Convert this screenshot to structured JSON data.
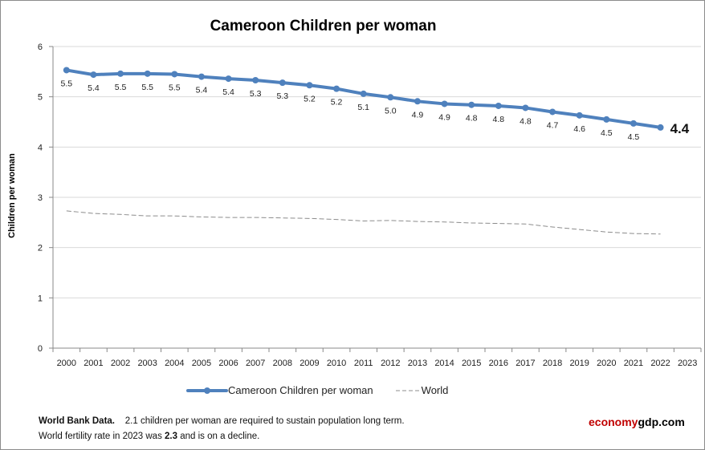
{
  "chart_data": {
    "type": "line",
    "title": "Cameroon Children per woman",
    "xlabel": "",
    "ylabel": "Children per woman",
    "ylim": [
      0,
      6
    ],
    "yticks": [
      0,
      1,
      2,
      3,
      4,
      5,
      6
    ],
    "grid": true,
    "legend_position": "bottom",
    "categories": [
      "2000",
      "2001",
      "2002",
      "2003",
      "2004",
      "2005",
      "2006",
      "2007",
      "2008",
      "2009",
      "2010",
      "2011",
      "2012",
      "2013",
      "2014",
      "2015",
      "2016",
      "2017",
      "2018",
      "2019",
      "2020",
      "2021",
      "2022",
      "2023"
    ],
    "series": [
      {
        "name": "Cameroon Children per woman",
        "color": "#4f81bd",
        "style": "solid-markers",
        "values": [
          5.53,
          5.44,
          5.46,
          5.46,
          5.45,
          5.4,
          5.36,
          5.33,
          5.28,
          5.23,
          5.16,
          5.06,
          4.99,
          4.91,
          4.86,
          4.84,
          4.82,
          4.78,
          4.7,
          4.63,
          4.55,
          4.47,
          4.39,
          null
        ],
        "data_labels": [
          "5.5",
          "5.4",
          "5.5",
          "5.5",
          "5.5",
          "5.4",
          "5.4",
          "5.3",
          "5.3",
          "5.2",
          "5.2",
          "5.1",
          "5.0",
          "4.9",
          "4.9",
          "4.8",
          "4.8",
          "4.8",
          "4.7",
          "4.6",
          "4.5",
          "4.5",
          "4.4"
        ]
      },
      {
        "name": "World",
        "color": "#8c8c8c",
        "style": "dashed",
        "values": [
          2.73,
          2.68,
          2.66,
          2.63,
          2.63,
          2.61,
          2.6,
          2.6,
          2.59,
          2.58,
          2.56,
          2.53,
          2.54,
          2.52,
          2.51,
          2.49,
          2.48,
          2.47,
          2.41,
          2.36,
          2.31,
          2.28,
          2.27,
          null
        ]
      }
    ]
  },
  "footer": {
    "source_label": "World Bank Data.",
    "note1": "2.1 children per woman  are required to sustain population long term.",
    "note2_prefix": "World fertility rate in 2023 was ",
    "note2_value": "2.3",
    "note2_suffix": " and is on a decline."
  },
  "brand": {
    "part1": "economy",
    "part2": "gdp.com",
    "color1": "#c00000",
    "color2": "#000000"
  }
}
